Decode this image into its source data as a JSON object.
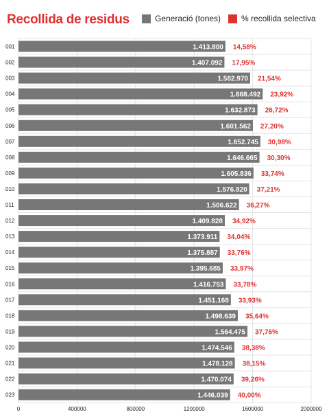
{
  "title": "Recollida de residus",
  "legend": [
    {
      "label": "Generació (tones)",
      "color": "#777777"
    },
    {
      "label": "% recollida selectiva",
      "color": "#e03131"
    }
  ],
  "chart_data": {
    "type": "bar",
    "orientation": "horizontal",
    "categories": [
      "001",
      "002",
      "003",
      "004",
      "005",
      "006",
      "007",
      "008",
      "009",
      "010",
      "011",
      "012",
      "013",
      "014",
      "015",
      "016",
      "017",
      "018",
      "019",
      "020",
      "021",
      "022",
      "023"
    ],
    "series": [
      {
        "name": "Generació (tones)",
        "color": "#777777",
        "values": [
          1413800,
          1407092,
          1582970,
          1668492,
          1632873,
          1601562,
          1652745,
          1646665,
          1605836,
          1576820,
          1506622,
          1409828,
          1373911,
          1375887,
          1395685,
          1416753,
          1451168,
          1498639,
          1564475,
          1474546,
          1478128,
          1470074,
          1446039
        ],
        "labels": [
          "1.413.800",
          "1.407.092",
          "1.582.970",
          "1.668.492",
          "1.632.873",
          "1.601.562",
          "1.652.745",
          "1.646.665",
          "1.605.836",
          "1.576.820",
          "1.506.622",
          "1.409.828",
          "1.373.911",
          "1.375.887",
          "1.395.685",
          "1.416.753",
          "1.451.168",
          "1.498.639",
          "1.564.475",
          "1.474.546",
          "1.478.128",
          "1.470.074",
          "1.446.039"
        ]
      },
      {
        "name": "% recollida selectiva",
        "color": "#e03131",
        "values": [
          14.58,
          17.95,
          21.54,
          23.92,
          26.72,
          27.2,
          30.98,
          30.3,
          33.74,
          37.21,
          36.27,
          34.92,
          34.04,
          33.76,
          33.97,
          33.78,
          33.93,
          35.64,
          37.76,
          38.38,
          38.15,
          39.26,
          40.0
        ],
        "labels": [
          "14,58%",
          "17,95%",
          "21,54%",
          "23,92%",
          "26,72%",
          "27,20%",
          "30,98%",
          "30,30%",
          "33,74%",
          "37,21%",
          "36,27%",
          "34,92%",
          "34,04%",
          "33,76%",
          "33,97%",
          "33,78%",
          "33,93%",
          "35,64%",
          "37,76%",
          "38,38%",
          "38,15%",
          "39,26%",
          "40,00%"
        ]
      }
    ],
    "xlim": [
      0,
      2000000
    ],
    "xticks": [
      "0",
      "400000",
      "800000",
      "1200000",
      "1600000",
      "2000000"
    ],
    "grid": true
  }
}
